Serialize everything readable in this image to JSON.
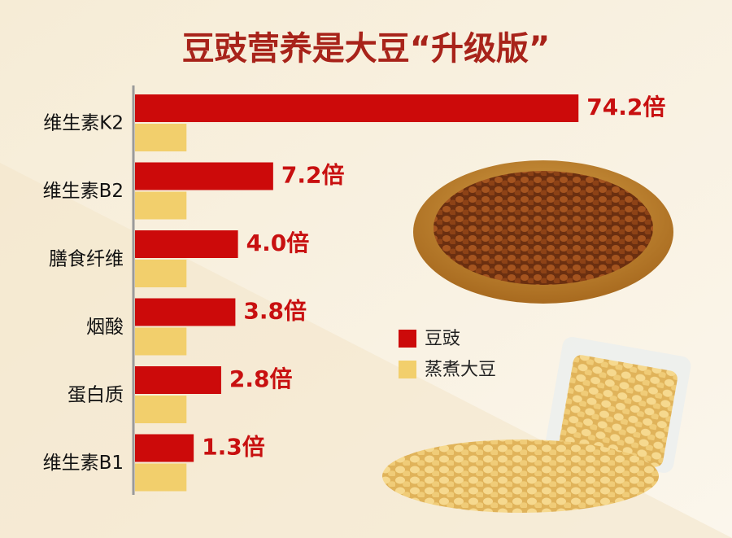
{
  "chart_data": {
    "type": "bar",
    "orientation": "horizontal",
    "title": "豆豉营养是大豆“升级版”",
    "categories": [
      "维生素K2",
      "维生素B2",
      "膳食纤维",
      "烟酸",
      "蛋白质",
      "维生素B1"
    ],
    "series": [
      {
        "name": "豆豉",
        "color": "#cc0a0a",
        "values": [
          74.2,
          7.2,
          4.0,
          3.8,
          2.8,
          1.3
        ],
        "value_labels": [
          "74.2倍",
          "7.2倍",
          "4.0倍",
          "3.8倍",
          "2.8倍",
          "1.3倍"
        ]
      },
      {
        "name": "蒸煮大豆",
        "color": "#f2cf6c",
        "values": [
          1,
          1,
          1,
          1,
          1,
          1
        ]
      }
    ]
  }
}
